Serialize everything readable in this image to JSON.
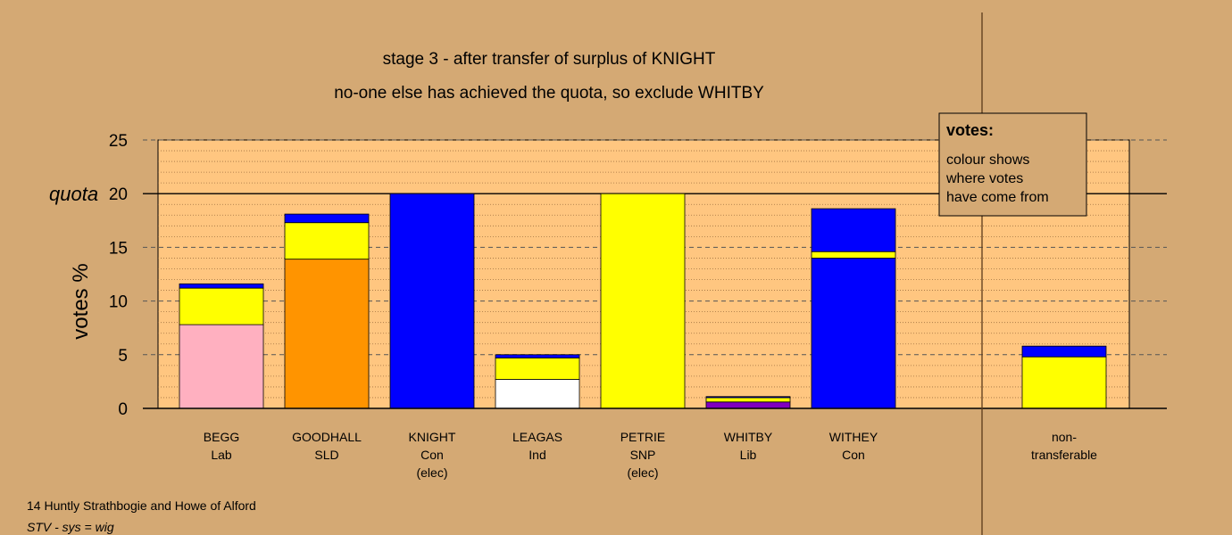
{
  "chart_data": {
    "type": "bar",
    "title": "stage 3 - after transfer of surplus of KNIGHT",
    "subtitle": "no-one else has achieved the quota, so exclude WHITBY",
    "ylabel": "votes %",
    "ylim": [
      0,
      25
    ],
    "yticks": [
      "0",
      "5",
      "10",
      "15",
      "20",
      "25"
    ],
    "quota_label": "quota",
    "quota_value": 20,
    "categories": [
      {
        "name": "BEGG",
        "party": "Lab",
        "note": ""
      },
      {
        "name": "GOODHALL",
        "party": "SLD",
        "note": ""
      },
      {
        "name": "KNIGHT",
        "party": "Con",
        "note": "(elec)"
      },
      {
        "name": "LEAGAS",
        "party": "Ind",
        "note": ""
      },
      {
        "name": "PETRIE",
        "party": "SNP",
        "note": "(elec)"
      },
      {
        "name": "WHITBY",
        "party": "Lib",
        "note": ""
      },
      {
        "name": "WITHEY",
        "party": "Con",
        "note": ""
      },
      {
        "name": "",
        "party": "",
        "note": ""
      },
      {
        "name": "non-",
        "party": "transferable",
        "note": ""
      }
    ],
    "stacks": [
      [
        {
          "value": 7.8,
          "color": "#ffb0c0"
        },
        {
          "value": 3.4,
          "color": "#ffff00"
        },
        {
          "value": 0.4,
          "color": "#0000ff"
        }
      ],
      [
        {
          "value": 13.9,
          "color": "#ff9400"
        },
        {
          "value": 3.4,
          "color": "#ffff00"
        },
        {
          "value": 0.8,
          "color": "#0000ff"
        }
      ],
      [
        {
          "value": 20.0,
          "color": "#0000ff"
        }
      ],
      [
        {
          "value": 2.7,
          "color": "#ffffff"
        },
        {
          "value": 2.0,
          "color": "#ffff00"
        },
        {
          "value": 0.3,
          "color": "#0000ff"
        }
      ],
      [
        {
          "value": 20.0,
          "color": "#ffff00"
        }
      ],
      [
        {
          "value": 0.6,
          "color": "#8000c0"
        },
        {
          "value": 0.4,
          "color": "#ffff00"
        },
        {
          "value": 0.1,
          "color": "#0000ff"
        }
      ],
      [
        {
          "value": 14.0,
          "color": "#0000ff"
        },
        {
          "value": 0.6,
          "color": "#ffff00"
        },
        {
          "value": 4.0,
          "color": "#0000ff"
        }
      ],
      [],
      [
        {
          "value": 4.8,
          "color": "#ffff00"
        },
        {
          "value": 1.0,
          "color": "#0000ff"
        }
      ]
    ],
    "grid": true,
    "legend": {
      "position": "top-right",
      "title": "votes:",
      "lines": [
        "colour shows",
        "where votes",
        "have come from"
      ]
    },
    "colors": {
      "background": "#d4a974",
      "plot_area": "#ffc680"
    }
  },
  "footer": {
    "line1": "14 Huntly Strathbogie and Howe of Alford",
    "line2": "STV - sys = wig"
  }
}
